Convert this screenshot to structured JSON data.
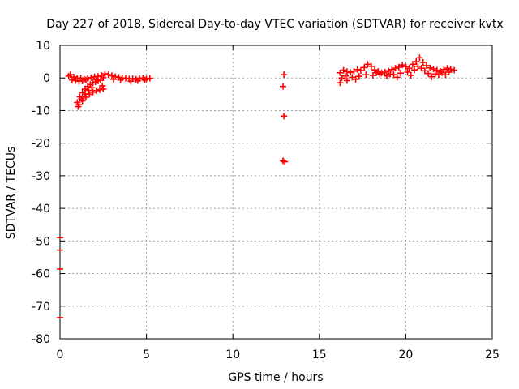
{
  "chart_data": {
    "type": "scatter",
    "title": "Day 227 of 2018, Sidereal Day-to-day VTEC variation (SDTVAR) for receiver kvtx",
    "xlabel": "GPS time / hours",
    "ylabel": "SDTVAR / TECUs",
    "xlim": [
      0,
      25
    ],
    "ylim": [
      -80,
      10
    ],
    "xticks": [
      "0",
      "5",
      "10",
      "15",
      "20",
      "25"
    ],
    "yticks": [
      "10",
      "0",
      "-10",
      "-20",
      "-30",
      "-40",
      "-50",
      "-60",
      "-70",
      "-80"
    ],
    "grid": true,
    "marker_color": "#ff0000",
    "series": [
      {
        "marker": "plus",
        "points": [
          [
            0.6,
            1.0
          ],
          [
            0.8,
            0.3
          ],
          [
            1.0,
            -0.2
          ],
          [
            1.2,
            0.0
          ],
          [
            1.4,
            -0.4
          ],
          [
            1.6,
            -0.2
          ],
          [
            1.8,
            0.1
          ],
          [
            2.0,
            0.4
          ],
          [
            2.2,
            0.5
          ],
          [
            2.4,
            0.8
          ],
          [
            2.6,
            1.3
          ],
          [
            2.8,
            1.0
          ],
          [
            3.0,
            0.7
          ],
          [
            3.2,
            0.4
          ],
          [
            3.4,
            0.2
          ],
          [
            3.6,
            0.0
          ],
          [
            3.8,
            -0.1
          ],
          [
            4.0,
            -0.3
          ],
          [
            4.2,
            -0.2
          ],
          [
            4.4,
            -0.4
          ],
          [
            4.6,
            -0.2
          ],
          [
            4.8,
            0.0
          ],
          [
            5.0,
            -0.3
          ],
          [
            5.2,
            -0.1
          ],
          [
            0.5,
            0.6
          ],
          [
            0.7,
            -0.6
          ],
          [
            0.9,
            -0.8
          ],
          [
            1.1,
            -1.0
          ],
          [
            1.3,
            -0.9
          ],
          [
            1.5,
            -0.6
          ],
          [
            2.1,
            -0.5
          ],
          [
            2.5,
            0.1
          ],
          [
            3.1,
            -0.4
          ],
          [
            3.5,
            -0.6
          ],
          [
            4.1,
            -1.0
          ],
          [
            4.5,
            -0.8
          ],
          [
            4.9,
            -0.6
          ],
          [
            1.0,
            -7.5
          ],
          [
            1.15,
            -5.8
          ],
          [
            1.3,
            -4.5
          ],
          [
            1.45,
            -3.4
          ],
          [
            1.6,
            -2.6
          ],
          [
            1.75,
            -2.0
          ],
          [
            1.9,
            -1.5
          ],
          [
            2.05,
            -1.2
          ],
          [
            2.2,
            -0.9
          ],
          [
            2.35,
            -0.7
          ],
          [
            1.1,
            -8.2
          ],
          [
            1.3,
            -7.0
          ],
          [
            1.5,
            -5.9
          ],
          [
            1.7,
            -5.0
          ],
          [
            1.9,
            -4.4
          ],
          [
            2.1,
            -3.9
          ],
          [
            2.3,
            -3.6
          ],
          [
            2.5,
            -3.4
          ],
          [
            1.05,
            -8.8
          ],
          [
            1.25,
            -6.4
          ],
          [
            1.45,
            -4.9
          ],
          [
            1.65,
            -3.8
          ],
          [
            1.85,
            -3.0
          ],
          [
            2.45,
            -2.4
          ],
          [
            12.95,
            1.0
          ],
          [
            12.9,
            -2.6
          ],
          [
            12.95,
            -11.7
          ],
          [
            12.9,
            -25.4
          ],
          [
            13.0,
            -25.7
          ],
          [
            16.2,
            1.6
          ],
          [
            16.4,
            2.4
          ],
          [
            16.6,
            2.0
          ],
          [
            16.8,
            1.7
          ],
          [
            17.0,
            2.1
          ],
          [
            17.2,
            2.6
          ],
          [
            17.4,
            2.3
          ],
          [
            17.6,
            3.2
          ],
          [
            17.8,
            4.2
          ],
          [
            18.0,
            3.6
          ],
          [
            18.2,
            2.5
          ],
          [
            18.4,
            2.0
          ],
          [
            18.6,
            1.6
          ],
          [
            18.8,
            1.8
          ],
          [
            19.0,
            2.2
          ],
          [
            19.2,
            2.6
          ],
          [
            19.4,
            3.0
          ],
          [
            19.6,
            3.3
          ],
          [
            19.8,
            4.0
          ],
          [
            20.0,
            3.5
          ],
          [
            20.2,
            3.0
          ],
          [
            20.4,
            4.2
          ],
          [
            20.6,
            5.0
          ],
          [
            20.8,
            6.2
          ],
          [
            21.0,
            4.8
          ],
          [
            21.2,
            3.8
          ],
          [
            21.4,
            3.1
          ],
          [
            21.6,
            2.8
          ],
          [
            21.8,
            2.4
          ],
          [
            22.0,
            2.0
          ],
          [
            22.2,
            2.6
          ],
          [
            22.4,
            3.0
          ],
          [
            22.6,
            2.7
          ],
          [
            22.8,
            2.4
          ],
          [
            16.3,
            0.0
          ],
          [
            16.5,
            0.6
          ],
          [
            16.9,
            0.2
          ],
          [
            17.3,
            0.5
          ],
          [
            17.7,
            1.0
          ],
          [
            18.1,
            0.8
          ],
          [
            18.5,
            1.2
          ],
          [
            18.9,
            0.6
          ],
          [
            19.3,
            1.0
          ],
          [
            19.7,
            1.5
          ],
          [
            20.1,
            1.8
          ],
          [
            20.5,
            2.5
          ],
          [
            20.9,
            3.0
          ],
          [
            21.3,
            1.4
          ],
          [
            21.7,
            1.2
          ],
          [
            22.1,
            1.6
          ],
          [
            22.5,
            1.8
          ],
          [
            16.2,
            -1.5
          ],
          [
            16.6,
            -0.8
          ],
          [
            17.1,
            -0.4
          ],
          [
            19.5,
            0.2
          ],
          [
            20.3,
            0.8
          ],
          [
            21.5,
            0.4
          ],
          [
            22.3,
            1.0
          ],
          [
            18.3,
            1.6
          ],
          [
            19.1,
            1.2
          ],
          [
            20.7,
            3.6
          ],
          [
            21.1,
            2.2
          ],
          [
            21.9,
            1.0
          ]
        ]
      },
      {
        "marker": "dash",
        "points": [
          [
            0.0,
            -49.0
          ],
          [
            0.0,
            -52.8
          ],
          [
            0.0,
            -58.6
          ],
          [
            0.0,
            -73.5
          ]
        ]
      }
    ]
  }
}
